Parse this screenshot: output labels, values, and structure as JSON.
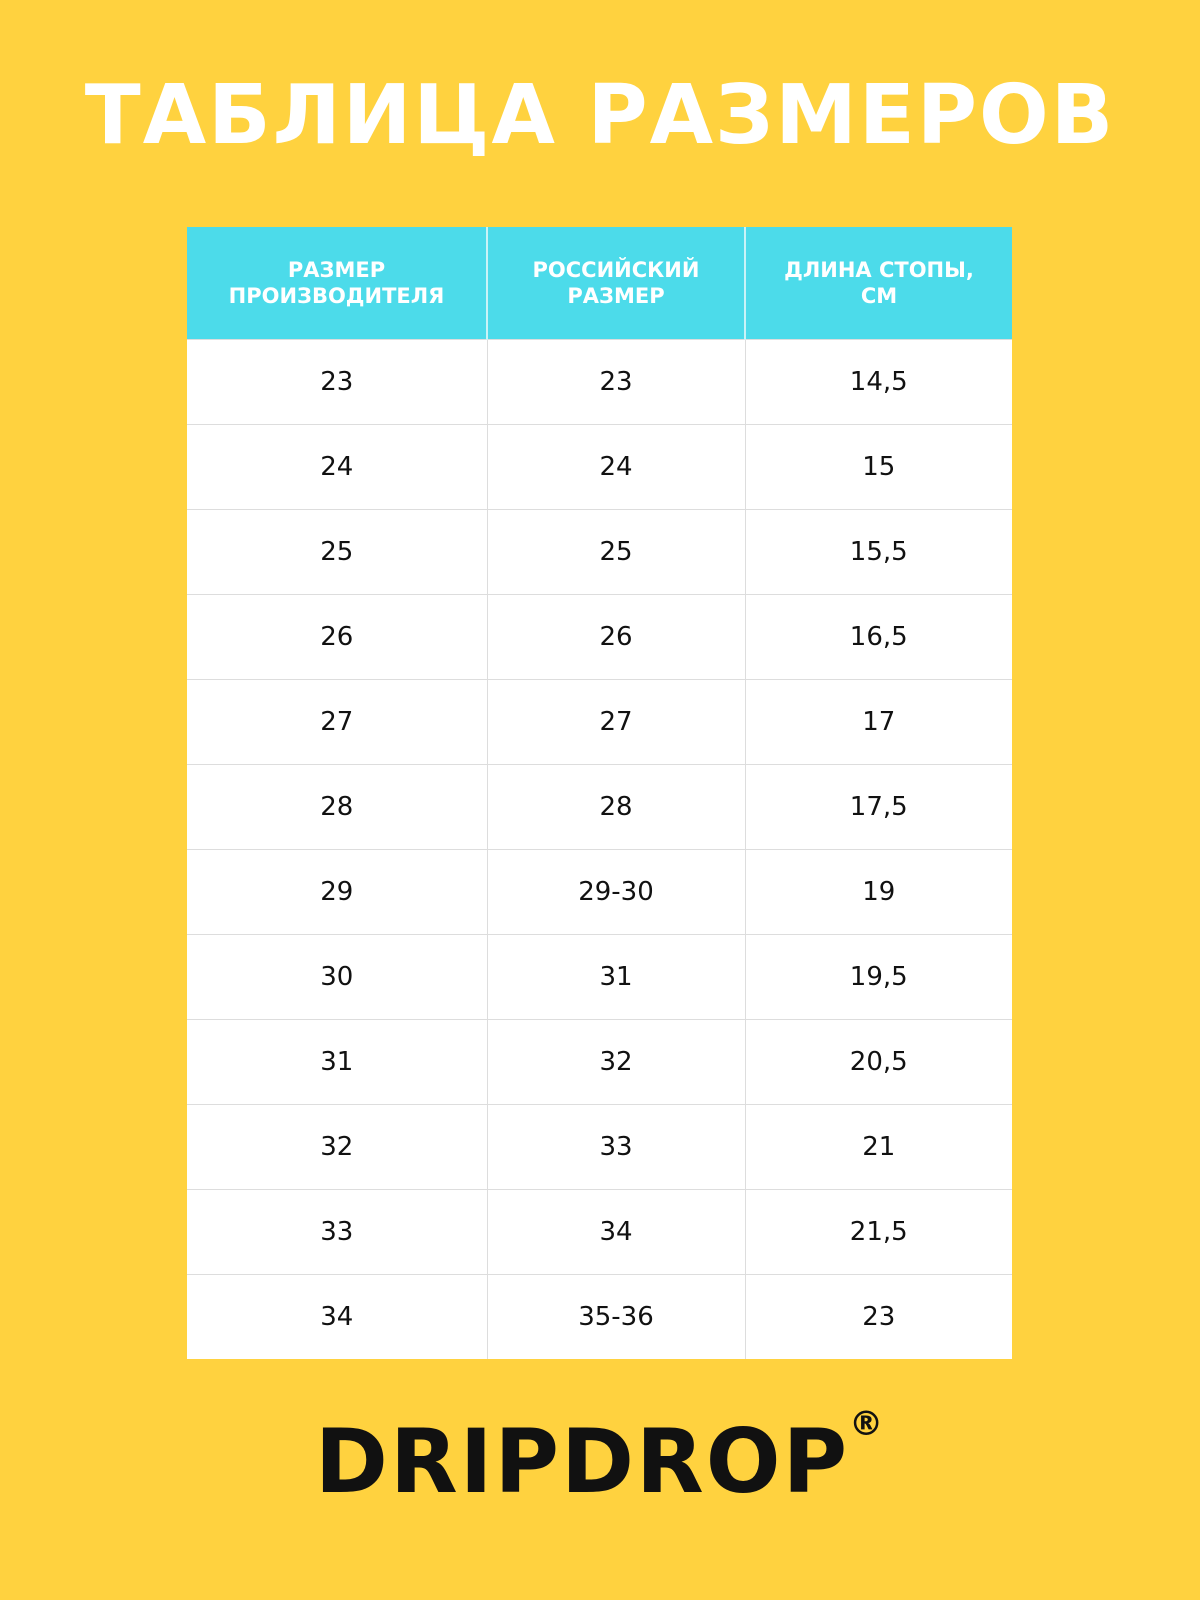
{
  "header": {
    "title": "ТАБЛИЦА РАЗМЕРОВ"
  },
  "table": {
    "columns": [
      "РАЗМЕР ПРОИЗВОДИТЕЛЯ",
      "РОССИЙСКИЙ РАЗМЕР",
      "ДЛИНА СТОПЫ, СМ"
    ],
    "rows": [
      [
        "23",
        "23",
        "14,5"
      ],
      [
        "24",
        "24",
        "15"
      ],
      [
        "25",
        "25",
        "15,5"
      ],
      [
        "26",
        "26",
        "16,5"
      ],
      [
        "27",
        "27",
        "17"
      ],
      [
        "28",
        "28",
        "17,5"
      ],
      [
        "29",
        "29-30",
        "19"
      ],
      [
        "30",
        "31",
        "19,5"
      ],
      [
        "31",
        "32",
        "20,5"
      ],
      [
        "32",
        "33",
        "21"
      ],
      [
        "33",
        "34",
        "21,5"
      ],
      [
        "34",
        "35-36",
        "23"
      ]
    ]
  },
  "footer": {
    "brand": "DRIPDROP",
    "mark": "®"
  }
}
